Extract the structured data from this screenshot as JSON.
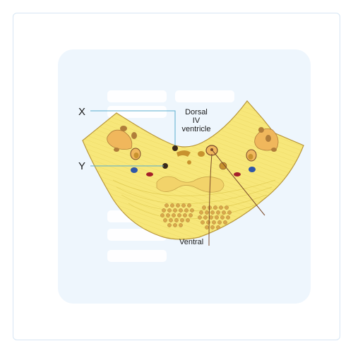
{
  "diagram": {
    "labels": {
      "x_marker": "X",
      "y_marker": "Y",
      "dorsal_line1": "Dorsal",
      "dorsal_line2": "IV",
      "dorsal_line3": "ventricle",
      "ventral": "Ventral"
    },
    "colors": {
      "tissue": "#f7e77a",
      "tissue_outline": "#b8963a",
      "nucleus": "#f0b75c",
      "nucleus_dark": "#7a4a2a",
      "dot": "#c8922e",
      "blue_spot": "#2f56a8",
      "red_spot": "#a41f2a",
      "leader_line": "#5aaecf",
      "pointer_line": "#7a4a2a",
      "background_panel": "#eef6fd"
    }
  }
}
